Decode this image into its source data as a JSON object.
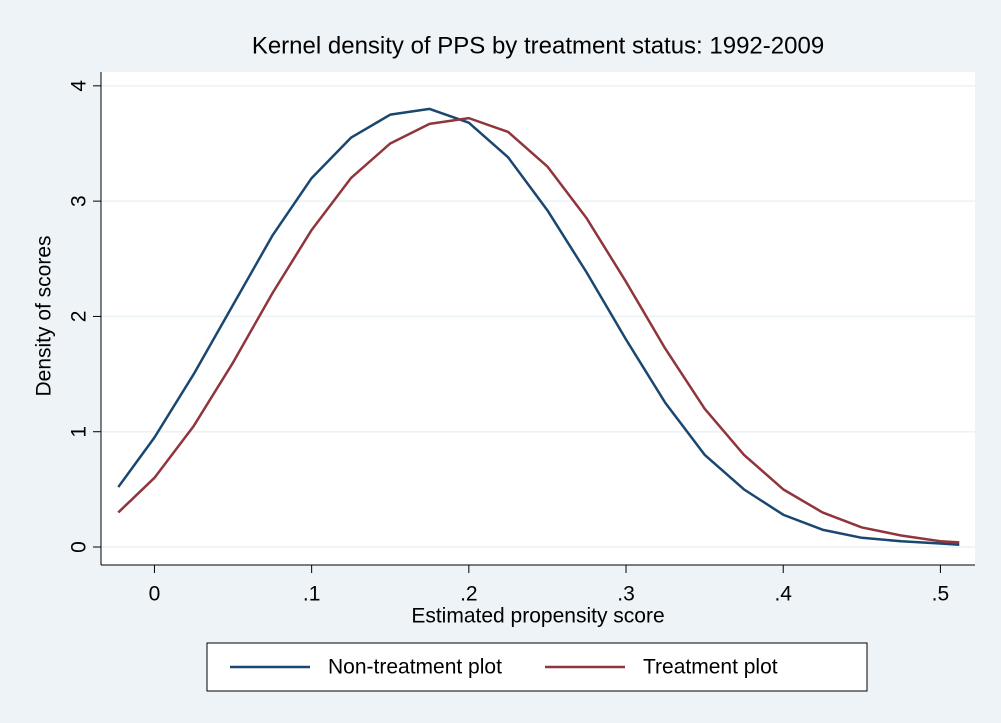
{
  "chart_data": {
    "type": "line",
    "title": "Kernel density of PPS by treatment status: 1992-2009",
    "xlabel": "Estimated propensity score",
    "ylabel": "Density of scores",
    "x": [
      -0.023,
      0,
      0.025,
      0.05,
      0.075,
      0.1,
      0.125,
      0.15,
      0.175,
      0.2,
      0.225,
      0.25,
      0.275,
      0.3,
      0.325,
      0.35,
      0.375,
      0.4,
      0.425,
      0.45,
      0.475,
      0.5,
      0.512
    ],
    "series": [
      {
        "name": "Non-treatment plot",
        "color": "#1a476f",
        "values": [
          0.52,
          0.95,
          1.5,
          2.1,
          2.7,
          3.2,
          3.55,
          3.75,
          3.8,
          3.68,
          3.38,
          2.92,
          2.38,
          1.8,
          1.25,
          0.8,
          0.5,
          0.28,
          0.15,
          0.08,
          0.05,
          0.03,
          0.02
        ]
      },
      {
        "name": "Treatment plot",
        "color": "#90353b",
        "values": [
          0.3,
          0.6,
          1.05,
          1.6,
          2.2,
          2.75,
          3.2,
          3.5,
          3.67,
          3.72,
          3.6,
          3.3,
          2.85,
          2.3,
          1.72,
          1.2,
          0.8,
          0.5,
          0.3,
          0.17,
          0.1,
          0.05,
          0.04
        ]
      }
    ],
    "xlim": [
      -0.034,
      0.522
    ],
    "xticks": [
      0,
      {
        "value": 0.1,
        "label": ".1"
      },
      {
        "value": 0.2,
        "label": ".2"
      },
      {
        "value": 0.3,
        "label": ".3"
      },
      {
        "value": 0.4,
        "label": ".4"
      },
      {
        "value": 0.5,
        "label": ".5"
      }
    ],
    "ylim": [
      -0.156,
      4.12
    ],
    "yticks": [
      0,
      1,
      2,
      3,
      4
    ],
    "grid": true,
    "legend": "bottom"
  }
}
